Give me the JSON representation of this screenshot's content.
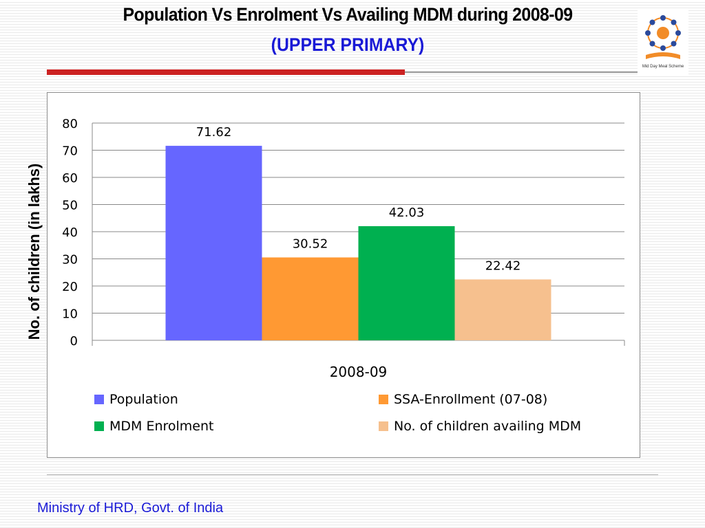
{
  "slide": {
    "title": "Population Vs Enrolment Vs Availing MDM during  2008-09",
    "subtitle": "(UPPER PRIMARY)",
    "footer": "Ministry of HRD, Govt. of India",
    "logo_caption": "Mid Day Meal Scheme"
  },
  "colors": {
    "title_blue": "#1a1ad6",
    "rule_red": "#cc2222"
  },
  "chart_data": {
    "type": "bar",
    "categories": [
      "2008-09"
    ],
    "xlabel": "2008-09",
    "ylabel": "No. of children (in lakhs)",
    "ylim": [
      0,
      80
    ],
    "yticks": [
      "0",
      "10",
      "20",
      "30",
      "40",
      "50",
      "60",
      "70",
      "80"
    ],
    "grid": true,
    "legend_position": "bottom",
    "series": [
      {
        "name": "Population",
        "values": [
          71.62
        ],
        "label": "71.62",
        "color": "#6666ff"
      },
      {
        "name": "SSA-Enrollment (07-08)",
        "values": [
          30.52
        ],
        "label": "30.52",
        "color": "#ff9933"
      },
      {
        "name": "MDM Enrolment",
        "values": [
          42.03
        ],
        "label": "42.03",
        "color": "#00b050"
      },
      {
        "name": "No. of children availing MDM",
        "values": [
          22.42
        ],
        "label": "22.42",
        "color": "#f6c08e"
      }
    ]
  }
}
